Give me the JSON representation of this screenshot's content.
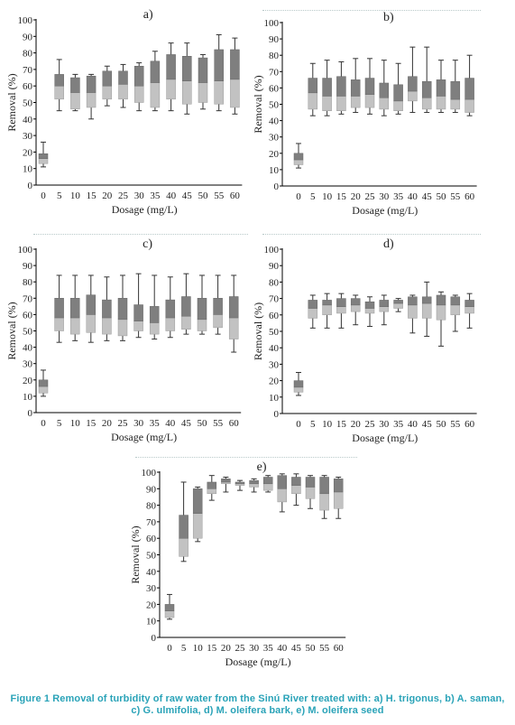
{
  "caption": "Figure 1 Removal of turbidity of raw water from the Sinú River treated with: a) H. trigonus, b) A. saman, c) G. ulmifolia, d) M. oleifera bark, e) M. oleifera seed",
  "colors": {
    "q1_box": "#c2c2c2",
    "q3_box": "#7f7f7f",
    "caption": "#2aa3b8",
    "axis": "#000000"
  },
  "chart_data": [
    {
      "panel": "a)",
      "type": "box",
      "xlabel": "Dosage (mg/L)",
      "ylabel": "Removal (%)",
      "ylim": [
        0,
        100
      ],
      "yticks": [
        0,
        10,
        20,
        30,
        40,
        50,
        60,
        70,
        80,
        90,
        100
      ],
      "categories": [
        "0",
        "5",
        "10",
        "15",
        "20",
        "25",
        "30",
        "35",
        "40",
        "45",
        "50",
        "55",
        "60"
      ],
      "min": [
        11,
        45,
        45,
        40,
        48,
        47,
        45,
        45,
        45,
        43,
        46,
        45,
        43
      ],
      "q1": [
        13,
        52,
        46,
        47,
        52,
        52,
        50,
        47,
        52,
        49,
        50,
        49,
        47
      ],
      "median": [
        16,
        60,
        56,
        56,
        60,
        61,
        60,
        62,
        64,
        63,
        62,
        63,
        64
      ],
      "q3": [
        19,
        67,
        65,
        66,
        69,
        69,
        72,
        75,
        79,
        78,
        77,
        82,
        82
      ],
      "max": [
        26,
        76,
        67,
        67,
        72,
        73,
        74,
        81,
        86,
        86,
        79,
        91,
        89
      ]
    },
    {
      "panel": "b)",
      "type": "box",
      "xlabel": "Dosage (mg/L)",
      "ylabel": "Removal (%)",
      "ylim": [
        0,
        100
      ],
      "yticks": [
        0,
        10,
        20,
        30,
        40,
        50,
        60,
        70,
        80,
        90,
        100
      ],
      "categories": [
        "0",
        "5",
        "10",
        "15",
        "20",
        "25",
        "30",
        "35",
        "40",
        "45",
        "50",
        "55",
        "60"
      ],
      "min": [
        11,
        43,
        43,
        44,
        45,
        44,
        43,
        44,
        45,
        45,
        45,
        45,
        43
      ],
      "q1": [
        13,
        47,
        46,
        46,
        48,
        48,
        47,
        46,
        52,
        47,
        47,
        47,
        45
      ],
      "median": [
        16,
        57,
        55,
        55,
        55,
        56,
        54,
        52,
        58,
        54,
        55,
        53,
        53
      ],
      "q3": [
        20,
        66,
        66,
        67,
        65,
        66,
        63,
        62,
        67,
        64,
        65,
        64,
        66
      ],
      "max": [
        26,
        75,
        77,
        76,
        78,
        78,
        77,
        75,
        85,
        85,
        77,
        77,
        80
      ]
    },
    {
      "panel": "c)",
      "type": "box",
      "xlabel": "Dosage (mg/L)",
      "ylabel": "Removal (%)",
      "ylim": [
        0,
        100
      ],
      "yticks": [
        0,
        10,
        20,
        30,
        40,
        50,
        60,
        70,
        80,
        90,
        100
      ],
      "categories": [
        "0",
        "5",
        "10",
        "15",
        "20",
        "25",
        "30",
        "35",
        "40",
        "45",
        "50",
        "55",
        "60"
      ],
      "min": [
        10,
        43,
        44,
        43,
        44,
        44,
        46,
        45,
        46,
        48,
        48,
        48,
        37
      ],
      "q1": [
        12,
        50,
        48,
        49,
        48,
        47,
        50,
        48,
        50,
        51,
        50,
        52,
        45
      ],
      "median": [
        16,
        58,
        58,
        60,
        58,
        57,
        56,
        55,
        58,
        59,
        57,
        60,
        58
      ],
      "q3": [
        20,
        70,
        70,
        72,
        69,
        70,
        66,
        65,
        69,
        71,
        70,
        70,
        71
      ],
      "max": [
        26,
        84,
        84,
        84,
        83,
        84,
        85,
        84,
        83,
        85,
        84,
        84,
        84
      ]
    },
    {
      "panel": "d)",
      "type": "box",
      "xlabel": "Dosage (mg/L)",
      "ylabel": "Removal (%)",
      "ylim": [
        0,
        100
      ],
      "yticks": [
        0,
        10,
        20,
        30,
        40,
        50,
        60,
        70,
        80,
        90,
        100
      ],
      "categories": [
        "0",
        "5",
        "10",
        "15",
        "20",
        "25",
        "30",
        "35",
        "40",
        "45",
        "50",
        "55",
        "60"
      ],
      "min": [
        11,
        52,
        52,
        52,
        54,
        53,
        54,
        62,
        49,
        47,
        41,
        50,
        52
      ],
      "q1": [
        13,
        58,
        60,
        61,
        62,
        61,
        62,
        64,
        58,
        58,
        57,
        60,
        61
      ],
      "median": [
        16,
        64,
        66,
        65,
        66,
        64,
        65,
        67,
        66,
        67,
        66,
        66,
        65
      ],
      "q3": [
        20,
        69,
        69,
        70,
        70,
        68,
        69,
        69,
        71,
        71,
        72,
        71,
        69
      ],
      "max": [
        25,
        72,
        73,
        73,
        72,
        71,
        72,
        70,
        72,
        80,
        74,
        72,
        73
      ]
    },
    {
      "panel": "e)",
      "type": "box",
      "xlabel": "Dosage (mg/L)",
      "ylabel": "Removal (%)",
      "ylim": [
        0,
        100
      ],
      "yticks": [
        0,
        10,
        20,
        30,
        40,
        50,
        60,
        70,
        80,
        90,
        100
      ],
      "categories": [
        "0",
        "5",
        "10",
        "15",
        "20",
        "25",
        "30",
        "35",
        "40",
        "45",
        "50",
        "55",
        "60"
      ],
      "min": [
        11,
        46,
        58,
        83,
        88,
        89,
        88,
        88,
        76,
        80,
        78,
        72,
        72
      ],
      "q1": [
        12,
        49,
        60,
        87,
        93,
        92,
        91,
        89,
        82,
        87,
        84,
        77,
        78
      ],
      "median": [
        16,
        60,
        75,
        90,
        94,
        93,
        93,
        93,
        90,
        92,
        91,
        87,
        88
      ],
      "q3": [
        20,
        74,
        90,
        94,
        96,
        94,
        95,
        97,
        98,
        97,
        97,
        97,
        96
      ],
      "max": [
        26,
        94,
        91,
        98,
        97,
        95,
        96,
        98,
        99,
        99,
        98,
        98,
        97
      ]
    }
  ]
}
